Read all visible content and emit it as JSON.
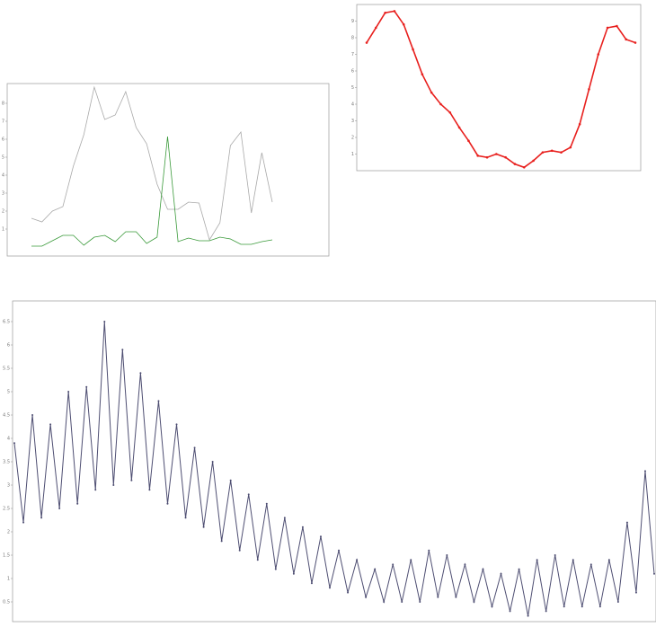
{
  "chart_data": [
    {
      "type": "line",
      "ylim": [
        0,
        9
      ],
      "yticks": [
        1,
        2,
        3,
        4,
        5,
        6,
        7,
        8
      ],
      "series": [
        {
          "color": "#a9a9a9",
          "values": [
            1.6,
            1.4,
            2.0,
            2.25,
            4.5,
            6.25,
            8.9,
            7.1,
            7.35,
            8.65,
            6.65,
            5.75,
            3.5,
            2.1,
            2.1,
            2.5,
            2.45,
            0.4,
            1.35,
            5.65,
            6.4,
            1.9,
            5.25,
            2.5
          ]
        },
        {
          "color": "#3a9a3a",
          "values": [
            0.05,
            0.05,
            0.35,
            0.65,
            0.65,
            0.1,
            0.55,
            0.65,
            0.3,
            0.85,
            0.85,
            0.2,
            0.55,
            6.15,
            0.3,
            0.5,
            0.35,
            0.35,
            0.55,
            0.45,
            0.15,
            0.15,
            0.3,
            0.4
          ]
        }
      ]
    },
    {
      "type": "line",
      "ylim": [
        0,
        10
      ],
      "yticks": [
        1,
        2,
        3,
        4,
        5,
        6,
        7,
        8,
        9
      ],
      "markers": true,
      "series": [
        {
          "color": "#e8201e",
          "values": [
            7.7,
            8.6,
            9.5,
            9.6,
            8.8,
            7.3,
            5.8,
            4.7,
            4.0,
            3.5,
            2.6,
            1.8,
            0.9,
            0.8,
            1.0,
            0.8,
            0.4,
            0.2,
            0.6,
            1.1,
            1.2,
            1.1,
            1.4,
            2.8,
            4.9,
            7.0,
            8.6,
            8.7,
            7.9,
            7.7
          ]
        }
      ]
    },
    {
      "type": "line",
      "ylim": [
        0,
        7
      ],
      "yticks": [
        0.5,
        1,
        1.5,
        2,
        2.5,
        3,
        3.5,
        4,
        4.5,
        5,
        5.5,
        6,
        6.5
      ],
      "markers": true,
      "series": [
        {
          "color": "#4e4e72",
          "values": [
            3.9,
            2.2,
            4.5,
            2.3,
            4.3,
            2.5,
            5.0,
            2.6,
            5.1,
            2.9,
            6.5,
            3.0,
            5.9,
            3.1,
            5.4,
            2.9,
            4.8,
            2.6,
            4.3,
            2.3,
            3.8,
            2.1,
            3.5,
            1.8,
            3.1,
            1.6,
            2.8,
            1.4,
            2.6,
            1.2,
            2.3,
            1.1,
            2.1,
            0.9,
            1.9,
            0.8,
            1.6,
            0.7,
            1.4,
            0.6,
            1.2,
            0.5,
            1.3,
            0.5,
            1.4,
            0.5,
            1.6,
            0.6,
            1.5,
            0.6,
            1.3,
            0.5,
            1.2,
            0.4,
            1.1,
            0.3,
            1.2,
            0.2,
            1.4,
            0.3,
            1.5,
            0.4,
            1.4,
            0.4,
            1.3,
            0.4,
            1.4,
            0.5,
            2.2,
            0.7,
            3.3,
            1.1
          ]
        }
      ]
    }
  ]
}
